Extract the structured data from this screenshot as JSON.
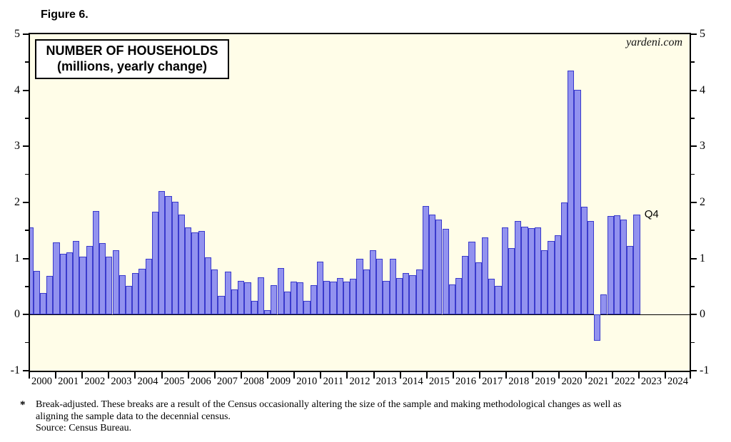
{
  "figure_label": "Figure 6.",
  "watermark": "yardeni.com",
  "chart_data": {
    "type": "bar",
    "title": "NUMBER OF HOUSEHOLDS",
    "subtitle": "(millions, yearly change)",
    "ylabel": "millions, yearly change",
    "ylim": [
      -1,
      5
    ],
    "yticks": [
      -1,
      0,
      1,
      2,
      3,
      4,
      5
    ],
    "minor_ytick_step": 0.5,
    "grid": "off",
    "bar_fill": "#9292ef",
    "bar_border": "#3a3acc",
    "plot_background": "#fffde8",
    "x_year_labels": [
      "2000",
      "2001",
      "2002",
      "2003",
      "2004",
      "2005",
      "2006",
      "2007",
      "2008",
      "2009",
      "2010",
      "2011",
      "2012",
      "2013",
      "2014",
      "2015",
      "2016",
      "2017",
      "2018",
      "2019",
      "2020",
      "2021",
      "2022",
      "2023",
      "2024"
    ],
    "x_years_span": 25,
    "last_point_label": "Q4",
    "quarters": [
      "1999Q4",
      "2000Q1",
      "2000Q2",
      "2000Q3",
      "2000Q4",
      "2001Q1",
      "2001Q2",
      "2001Q3",
      "2001Q4",
      "2002Q1",
      "2002Q2",
      "2002Q3",
      "2002Q4",
      "2003Q1",
      "2003Q2",
      "2003Q3",
      "2003Q4",
      "2004Q1",
      "2004Q2",
      "2004Q3",
      "2004Q4",
      "2005Q1",
      "2005Q2",
      "2005Q3",
      "2005Q4",
      "2006Q1",
      "2006Q2",
      "2006Q3",
      "2006Q4",
      "2007Q1",
      "2007Q2",
      "2007Q3",
      "2007Q4",
      "2008Q1",
      "2008Q2",
      "2008Q3",
      "2008Q4",
      "2009Q1",
      "2009Q2",
      "2009Q3",
      "2009Q4",
      "2010Q1",
      "2010Q2",
      "2010Q3",
      "2010Q4",
      "2011Q1",
      "2011Q2",
      "2011Q3",
      "2011Q4",
      "2012Q1",
      "2012Q2",
      "2012Q3",
      "2012Q4",
      "2013Q1",
      "2013Q2",
      "2013Q3",
      "2013Q4",
      "2014Q1",
      "2014Q2",
      "2014Q3",
      "2014Q4",
      "2015Q1",
      "2015Q2",
      "2015Q3",
      "2015Q4",
      "2016Q1",
      "2016Q2",
      "2016Q3",
      "2016Q4",
      "2017Q1",
      "2017Q2",
      "2017Q3",
      "2017Q4",
      "2018Q1",
      "2018Q2",
      "2018Q3",
      "2018Q4",
      "2019Q1",
      "2019Q2",
      "2019Q3",
      "2019Q4",
      "2020Q1",
      "2020Q2",
      "2020Q3",
      "2020Q4",
      "2021Q1",
      "2021Q2",
      "2021Q3",
      "2021Q4",
      "2022Q1",
      "2022Q2",
      "2022Q3",
      "2022Q4"
    ],
    "values": [
      1.55,
      0.78,
      0.39,
      0.69,
      1.29,
      1.08,
      1.11,
      1.31,
      1.03,
      1.23,
      1.85,
      1.28,
      1.04,
      1.15,
      0.7,
      0.51,
      0.74,
      0.82,
      0.99,
      1.84,
      2.2,
      2.11,
      2.01,
      1.78,
      1.55,
      1.47,
      1.49,
      1.02,
      0.8,
      0.34,
      0.77,
      0.45,
      0.6,
      0.58,
      0.24,
      0.67,
      0.08,
      0.53,
      0.83,
      0.41,
      0.59,
      0.57,
      0.24,
      0.53,
      0.94,
      0.6,
      0.59,
      0.65,
      0.59,
      0.64,
      1.0,
      0.81,
      1.15,
      0.99,
      0.6,
      0.99,
      0.65,
      0.74,
      0.7,
      0.81,
      1.94,
      1.78,
      1.69,
      1.53,
      0.54,
      0.65,
      1.05,
      1.3,
      0.93,
      1.38,
      0.64,
      0.51,
      1.56,
      1.19,
      1.67,
      1.57,
      1.54,
      1.56,
      1.15,
      1.31,
      1.42,
      2.0,
      4.35,
      4.01,
      1.93,
      1.67,
      -0.47,
      0.36,
      1.76,
      1.77,
      1.69,
      1.22,
      1.78
    ]
  },
  "footnote": {
    "marker": "*",
    "line1": "Break-adjusted. These breaks are a result of the Census occasionally altering the size of the sample and making methodological changes as well as",
    "line2": "aligning the sample data to the decennial census.",
    "source": "Source: Census Bureau."
  }
}
